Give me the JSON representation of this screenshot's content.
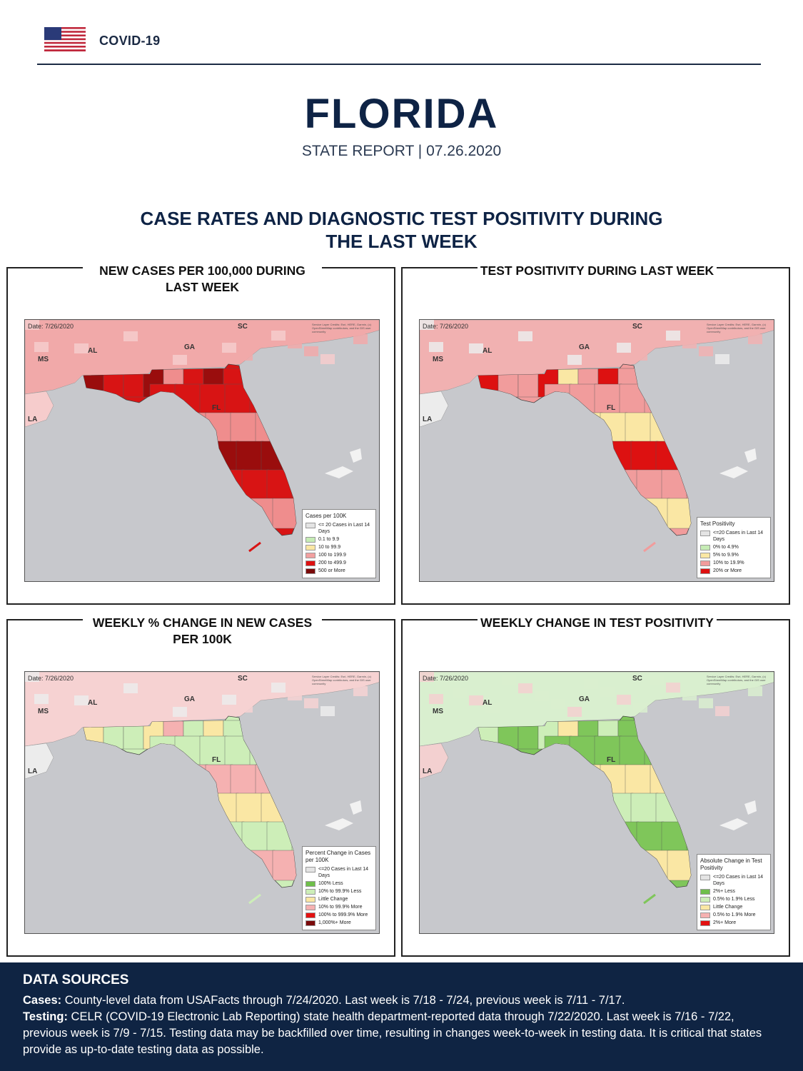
{
  "header": {
    "label": "COVID-19"
  },
  "title": "FLORIDA",
  "subtitle": "STATE REPORT | 07.26.2020",
  "section_title": "CASE RATES AND DIAGNOSTIC TEST POSITIVITY DURING THE LAST WEEK",
  "map_common": {
    "date": "Date: 7/26/2020",
    "credit": "Service Layer Credits: Esri, HERE, Garmin, (c) OpenStreetMap contributors, and the GIS user community",
    "state_labels": {
      "sc": "SC",
      "al": "AL",
      "ga": "GA",
      "ms": "MS",
      "la": "LA",
      "fl": "FL"
    }
  },
  "panels": [
    {
      "title": "NEW CASES PER 100,000 DURING LAST WEEK",
      "legend_title": "Cases per 100K",
      "legend": [
        {
          "label": "<= 20 Cases in Last 14 Days",
          "color": "#e4e4e4"
        },
        {
          "label": "0.1 to 9.9",
          "color": "#c6ecb5"
        },
        {
          "label": "10 to 99.9",
          "color": "#fae7a4"
        },
        {
          "label": "100 to 199.9",
          "color": "#f2a0a0"
        },
        {
          "label": "200 to 499.9",
          "color": "#dd1111"
        },
        {
          "label": "500 or More",
          "color": "#7a0a0a"
        }
      ],
      "fill_main": "#d81414",
      "fill_alt": "#9a0d0d",
      "fill_light": "#ef8d8d",
      "surround": "#f1a9a9",
      "surround_alt": "#f6cccc"
    },
    {
      "title": "TEST POSITIVITY DURING LAST WEEK",
      "legend_title": "Test Positivity",
      "legend": [
        {
          "label": "<=20 Cases in Last 14 Days",
          "color": "#e4e4e4"
        },
        {
          "label": "0% to 4.9%",
          "color": "#c6ecb5"
        },
        {
          "label": "5% to 9.9%",
          "color": "#fae7a4"
        },
        {
          "label": "10% to 19.9%",
          "color": "#f19c9c"
        },
        {
          "label": "20% or More",
          "color": "#dd1111"
        }
      ],
      "fill_main": "#f19c9c",
      "fill_alt": "#dd1111",
      "fill_light": "#fae7a4",
      "surround": "#f1b1b1",
      "surround_alt": "#ececec"
    },
    {
      "title": "WEEKLY % CHANGE IN NEW CASES PER 100K",
      "legend_title": "Percent Change in Cases per 100K",
      "legend": [
        {
          "label": "<=20 Cases in Last 14 Days",
          "color": "#e4e4e4"
        },
        {
          "label": "100% Less",
          "color": "#6fbf4a"
        },
        {
          "label": "10% to 99.9% Less",
          "color": "#cdeeb8"
        },
        {
          "label": "Little Change",
          "color": "#fae7a4"
        },
        {
          "label": "10% to 99.9% More",
          "color": "#f5b1b1"
        },
        {
          "label": "100% to 999.9% More",
          "color": "#e31111"
        },
        {
          "label": "1,000%+ More",
          "color": "#7a0a0a"
        }
      ],
      "fill_main": "#cdeeb8",
      "fill_alt": "#fae7a4",
      "fill_light": "#f5b1b1",
      "surround": "#f6d2d2",
      "surround_alt": "#ececec"
    },
    {
      "title": "WEEKLY CHANGE IN TEST POSITIVITY",
      "legend_title": "Absolute Change in Test Positivity",
      "legend": [
        {
          "label": "<=20 Cases in Last 14 Days",
          "color": "#e4e4e4"
        },
        {
          "label": "2%+ Less",
          "color": "#6fbf4a"
        },
        {
          "label": "0.5% to 1.9% Less",
          "color": "#cdeeb8"
        },
        {
          "label": "Little Change",
          "color": "#fae7a4"
        },
        {
          "label": "0.5% to 1.9% More",
          "color": "#f5b1b1"
        },
        {
          "label": "2%+ More",
          "color": "#e31111"
        }
      ],
      "fill_main": "#7fc65a",
      "fill_alt": "#cdeeb8",
      "fill_light": "#fae7a4",
      "surround": "#d9efcf",
      "surround_alt": "#f3d0d0"
    }
  ],
  "sources": {
    "title": "DATA SOURCES",
    "cases_label": "Cases:",
    "cases_text": " County-level data from USAFacts through 7/24/2020. Last week is 7/18 - 7/24, previous week is 7/11 - 7/17.",
    "testing_label": "Testing:",
    "testing_text": " CELR (COVID-19 Electronic Lab Reporting) state health department-reported data through 7/22/2020. Last week is 7/16 - 7/22, previous week is 7/9 - 7/15. Testing data may be backfilled over time, resulting in changes week-to-week in testing data. It is critical that states provide as up-to-date testing data as possible."
  }
}
